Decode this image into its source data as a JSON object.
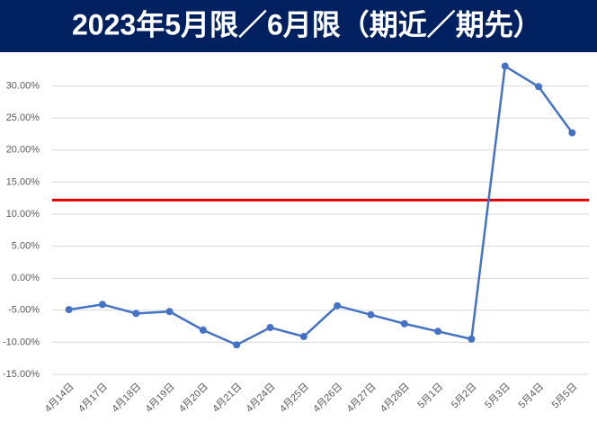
{
  "chart_data": {
    "type": "line",
    "title": "2023年5月限／6月限（期近／期先）",
    "categories": [
      "4月14日",
      "4月17日",
      "4月18日",
      "4月19日",
      "4月20日",
      "4月21日",
      "4月24日",
      "4月25日",
      "4月26日",
      "4月27日",
      "4月28日",
      "5月1日",
      "5月2日",
      "5月3日",
      "5月4日",
      "5月5日"
    ],
    "series": [
      {
        "color": "#4472c4",
        "values": [
          -4.9,
          -4.1,
          -5.5,
          -5.2,
          -8.1,
          -10.4,
          -7.7,
          -9.1,
          -4.3,
          -5.7,
          -7.1,
          -8.3,
          -9.5,
          33.1,
          29.9,
          22.7
        ]
      }
    ],
    "reference_line": {
      "value": 12.2,
      "color": "#e00000"
    },
    "ylim": [
      -15,
      35
    ],
    "yticks": [
      {
        "value": -15,
        "label": "-15.00%"
      },
      {
        "value": -10,
        "label": "-10.00%"
      },
      {
        "value": -5,
        "label": "-5.00%"
      },
      {
        "value": 0,
        "label": "0.00%"
      },
      {
        "value": 5,
        "label": "5.00%"
      },
      {
        "value": 10,
        "label": "10.00%"
      },
      {
        "value": 15,
        "label": "15.00%"
      },
      {
        "value": 20,
        "label": "20.00%"
      },
      {
        "value": 25,
        "label": "25.00%"
      },
      {
        "value": 30,
        "label": "30.00%"
      }
    ],
    "grid": true
  }
}
